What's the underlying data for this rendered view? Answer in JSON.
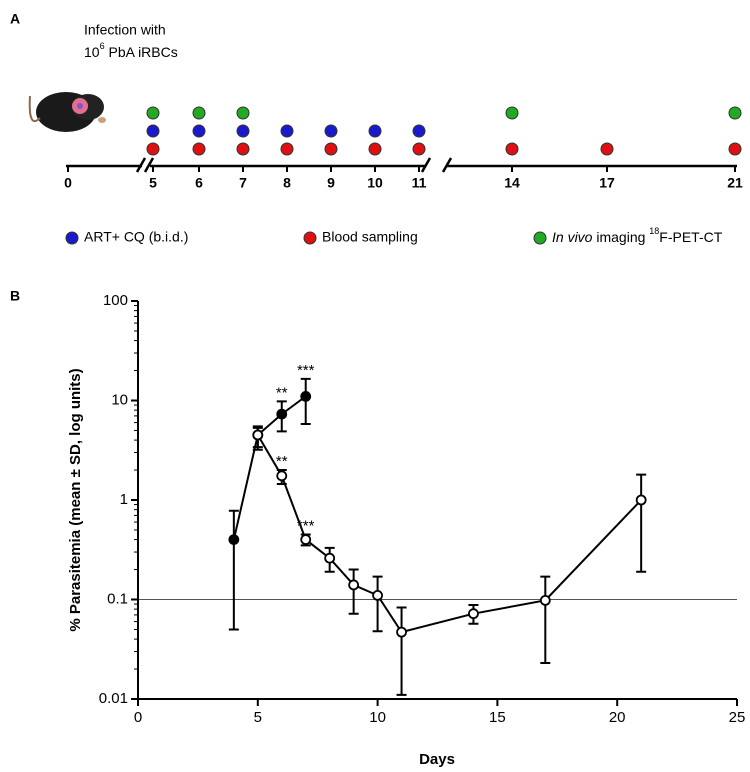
{
  "panel_a": {
    "label": "A",
    "infection_line1": "Infection with",
    "infection_base": "10",
    "infection_sup": "6",
    "infection_rest": " PbA iRBCs",
    "timeline_days": [
      0,
      5,
      6,
      7,
      8,
      9,
      10,
      11,
      14,
      17,
      21
    ],
    "schedule": [
      {
        "color": "#22aa22",
        "days": [
          5,
          6,
          7,
          14,
          21
        ]
      },
      {
        "color": "#1a1acc",
        "days": [
          5,
          6,
          7,
          8,
          9,
          10,
          11
        ]
      },
      {
        "color": "#dd1111",
        "days": [
          5,
          6,
          7,
          8,
          9,
          10,
          11,
          14,
          17,
          21
        ]
      }
    ],
    "legend_blue": "ART+ CQ (b.i.d.)",
    "legend_red": "Blood sampling",
    "legend_green_italic": "In vivo",
    "legend_green_mid": " imaging ",
    "legend_green_sup": "18",
    "legend_green_rest": "F-PET-CT"
  },
  "chart_data": {
    "type": "line",
    "panel_label": "B",
    "xlabel": "Days",
    "ylabel": "% Parasitemia (mean ± SD, log units)",
    "xlim": [
      0,
      25
    ],
    "xticks": [
      0,
      5,
      10,
      15,
      20,
      25
    ],
    "ylim": [
      0.01,
      100
    ],
    "yticks": [
      0.01,
      0.1,
      1,
      10,
      100
    ],
    "yscale": "log",
    "hline": 0.1,
    "series": [
      {
        "color": "#000000",
        "marker_fill": "#000000",
        "x": [
          4,
          5,
          6,
          7
        ],
        "values": [
          0.4,
          4.5,
          7.3,
          11
        ],
        "lower": [
          0.05,
          3.2,
          4.9,
          5.8
        ],
        "upper": [
          0.78,
          5.5,
          9.8,
          16.5
        ],
        "significance": [
          null,
          null,
          "**",
          "***"
        ]
      },
      {
        "color": "#000000",
        "marker_fill": "#ffffff",
        "x": [
          5,
          6,
          7,
          8,
          9,
          10,
          11,
          14,
          17,
          21
        ],
        "values": [
          4.5,
          1.75,
          0.4,
          0.26,
          0.14,
          0.11,
          0.047,
          0.072,
          0.098,
          1.0
        ],
        "lower": [
          3.4,
          1.45,
          0.35,
          0.19,
          0.072,
          0.048,
          0.011,
          0.057,
          0.023,
          0.19
        ],
        "upper": [
          5.3,
          2.0,
          0.45,
          0.33,
          0.2,
          0.17,
          0.083,
          0.088,
          0.17,
          1.8
        ],
        "significance": [
          null,
          "**",
          "***",
          null,
          null,
          null,
          null,
          null,
          null,
          null
        ]
      }
    ]
  }
}
